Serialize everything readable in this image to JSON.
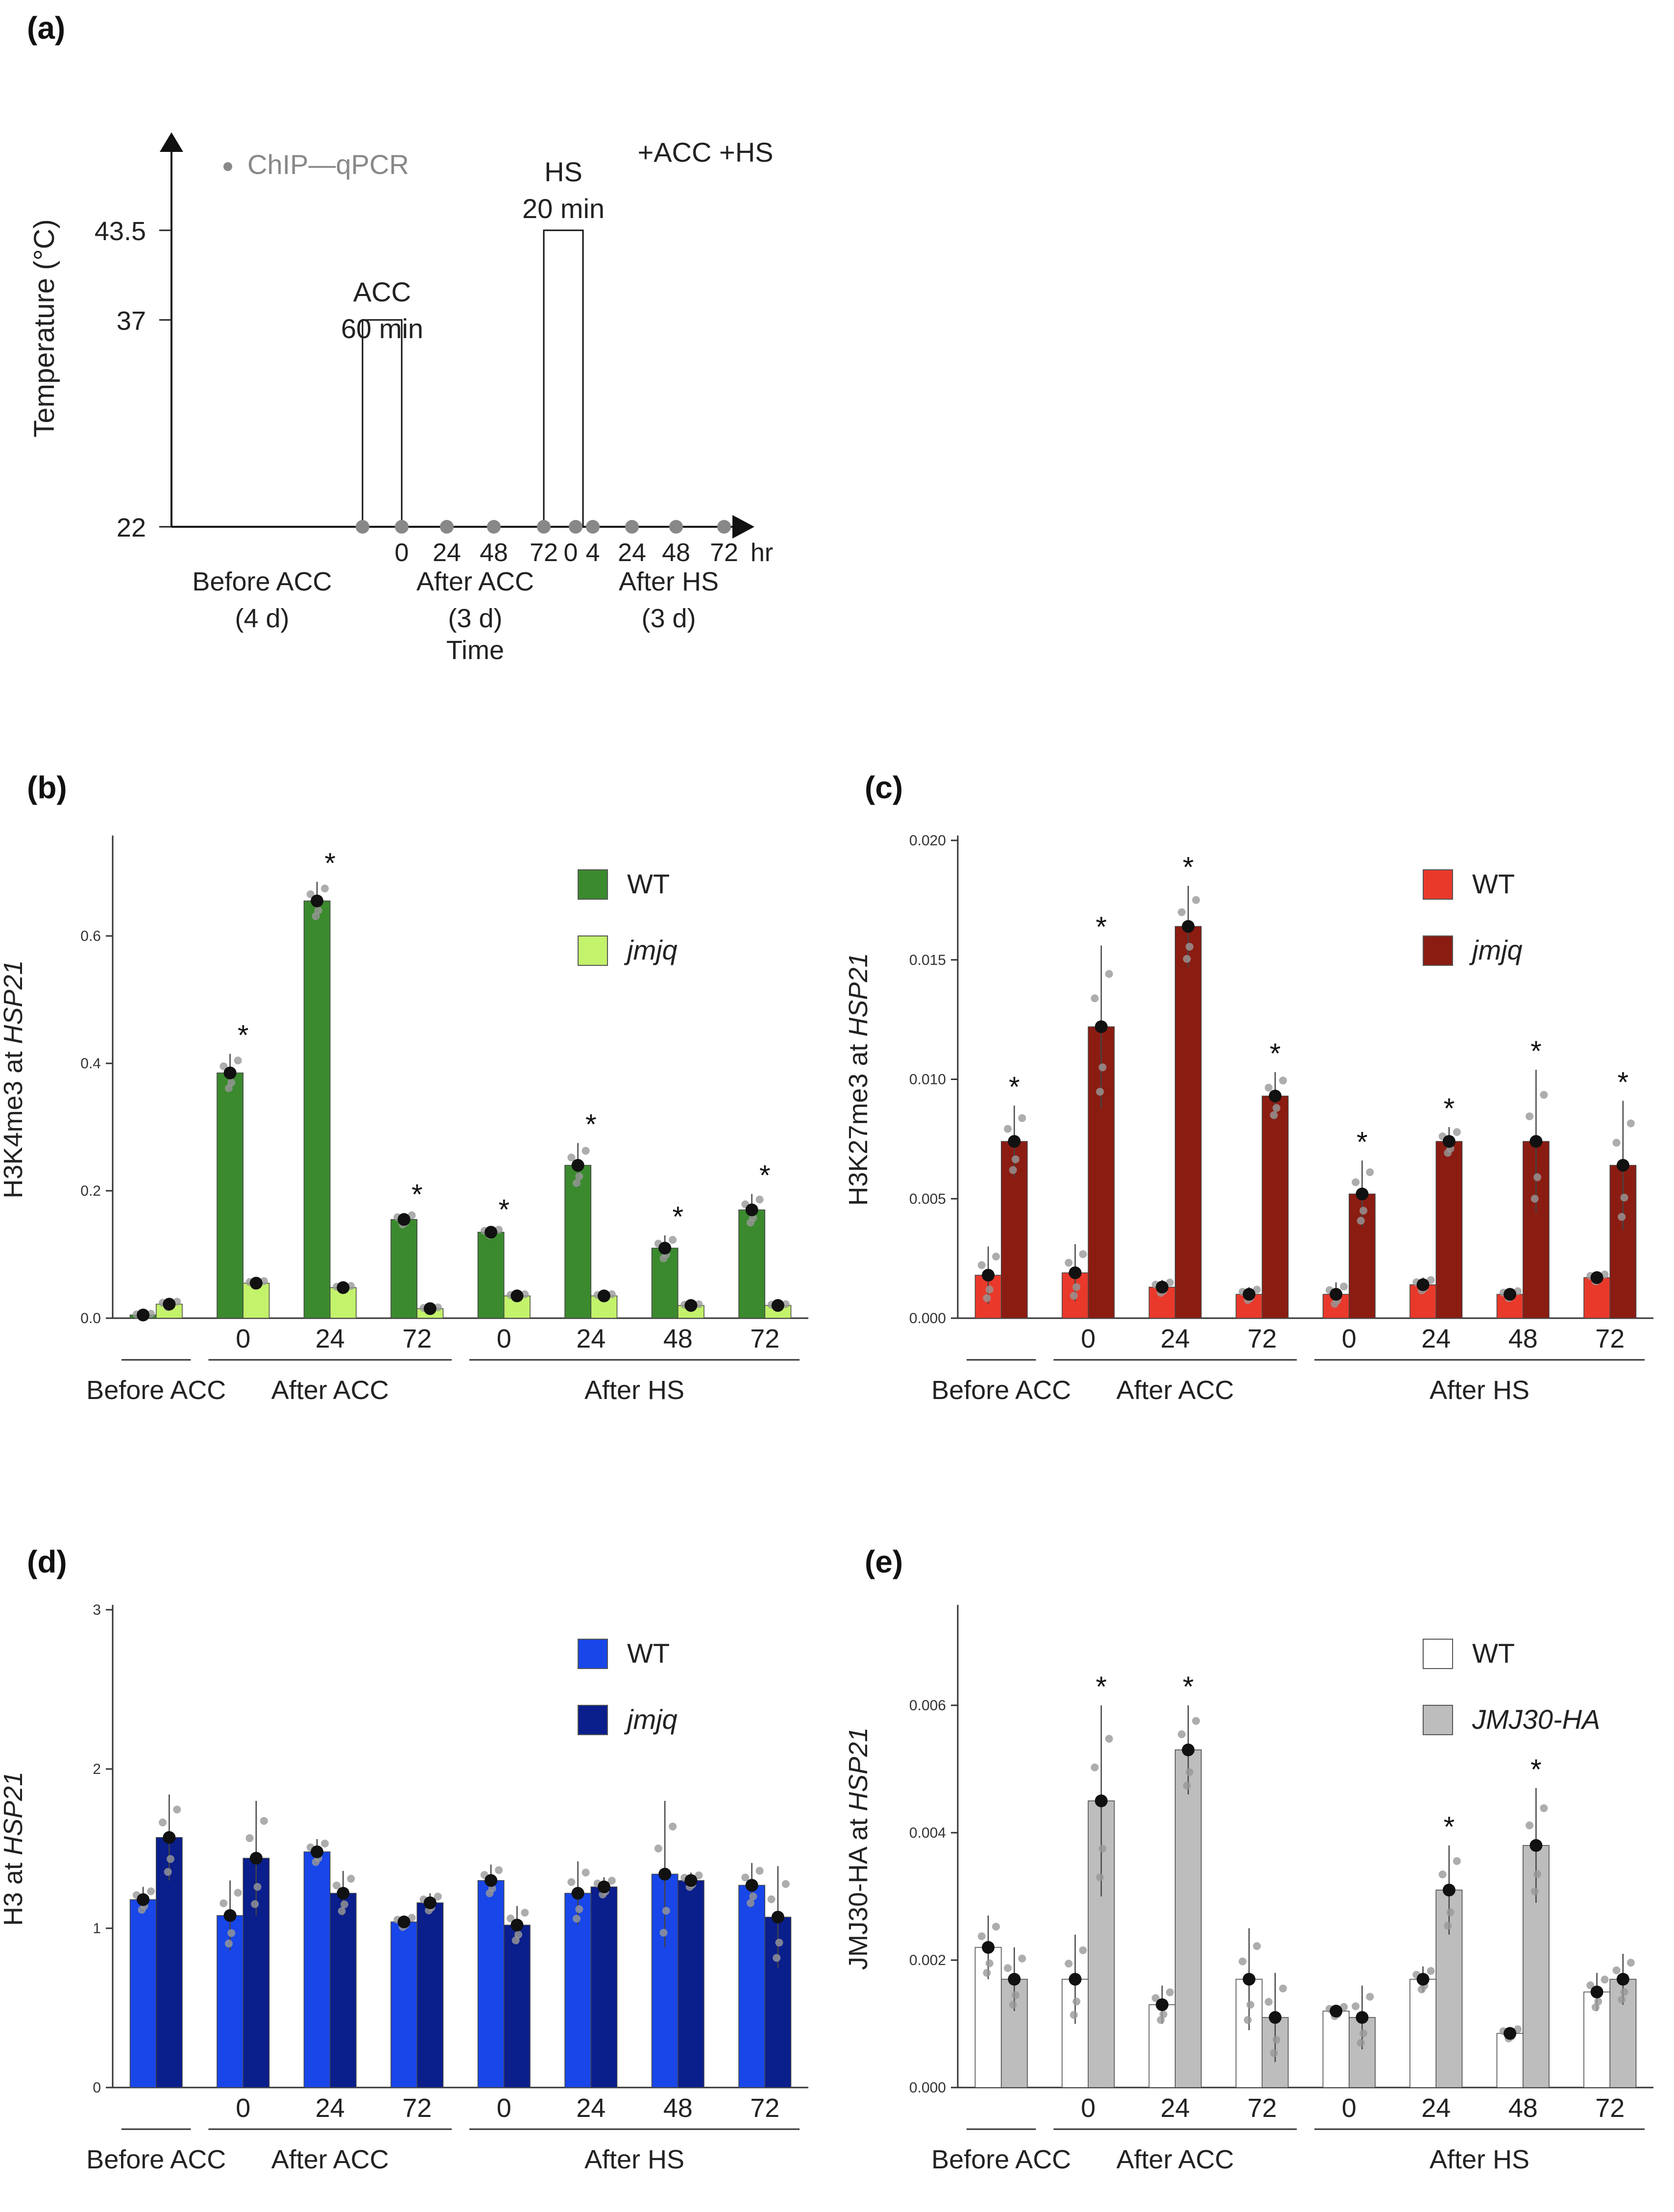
{
  "panel_labels": [
    "(a)",
    "(b)",
    "(c)",
    "(d)",
    "(e)"
  ],
  "panel_a": {
    "ylabel": "Temperature (°C)",
    "xlabel": "Time",
    "yticks": [
      "43.5",
      "37",
      "22"
    ],
    "legend": "ChIP—qPCR",
    "treatment": "+ACC +HS",
    "acc_label": [
      "ACC",
      "60 min"
    ],
    "hs_label": [
      "HS",
      "20 min"
    ],
    "xticks": [
      "0",
      "24",
      "48",
      "72",
      "0",
      "4",
      "24",
      "48",
      "72"
    ],
    "unit": "hr",
    "phases": [
      [
        "Before ACC",
        "(4 d)"
      ],
      [
        "After ACC",
        "(3 d)"
      ],
      [
        "After HS",
        "(3 d)"
      ]
    ]
  },
  "chart_data": [
    {
      "panel": "b",
      "type": "bar",
      "ylabel_prefix": "H3K4me3 at ",
      "ylabel_gene": "HSP21",
      "ylim": [
        0,
        0.75
      ],
      "yticks": [
        "0.0",
        "0.2",
        "0.4",
        "0.6"
      ],
      "categories": [
        "",
        "0",
        "24",
        "72",
        "0",
        "24",
        "48",
        "72"
      ],
      "groups": [
        "Before ACC",
        "After ACC",
        "After HS"
      ],
      "series": [
        {
          "name": "WT",
          "color": "#3b8a2e",
          "values": [
            0.005,
            0.385,
            0.655,
            0.155,
            0.135,
            0.24,
            0.11,
            0.17
          ],
          "err": [
            0.003,
            0.03,
            0.03,
            0.01,
            0.006,
            0.035,
            0.02,
            0.025
          ]
        },
        {
          "name": "jmjq",
          "color": "#c3f26b",
          "values": [
            0.022,
            0.055,
            0.048,
            0.015,
            0.035,
            0.035,
            0.02,
            0.02
          ],
          "err": [
            0.006,
            0.005,
            0.004,
            0.003,
            0.004,
            0.004,
            0.003,
            0.003
          ]
        }
      ],
      "significance": [
        "",
        "*",
        "*",
        "*",
        "*",
        "*",
        "*",
        "*"
      ]
    },
    {
      "panel": "c",
      "type": "bar",
      "ylabel_prefix": "H3K27me3 at ",
      "ylabel_gene": "HSP21",
      "ylim": [
        0,
        0.02
      ],
      "yticks": [
        "0.000",
        "0.005",
        "0.010",
        "0.015",
        "0.020"
      ],
      "categories": [
        "",
        "0",
        "24",
        "72",
        "0",
        "24",
        "48",
        "72"
      ],
      "groups": [
        "Before ACC",
        "After ACC",
        "After HS"
      ],
      "series": [
        {
          "name": "WT",
          "color": "#e8392b",
          "values": [
            0.0018,
            0.0019,
            0.0013,
            0.001,
            0.001,
            0.0014,
            0.001,
            0.0017
          ],
          "err": [
            0.0012,
            0.0012,
            0.0003,
            0.0003,
            0.0005,
            0.0003,
            0.0002,
            0.0002
          ]
        },
        {
          "name": "jmjq",
          "color": "#8b1c12",
          "values": [
            0.0074,
            0.0122,
            0.0164,
            0.0093,
            0.0052,
            0.0074,
            0.0074,
            0.0064
          ],
          "err": [
            0.0015,
            0.0034,
            0.0017,
            0.001,
            0.0014,
            0.0006,
            0.003,
            0.0027
          ]
        }
      ],
      "significance": [
        "*",
        "*",
        "*",
        "*",
        "*",
        "*",
        "*",
        "*"
      ]
    },
    {
      "panel": "d",
      "type": "bar",
      "ylabel_prefix": "H3 at ",
      "ylabel_gene": "HSP21",
      "ylim": [
        0,
        3
      ],
      "yticks": [
        "0",
        "1",
        "2",
        "3"
      ],
      "categories": [
        "",
        "0",
        "24",
        "72",
        "0",
        "24",
        "48",
        "72"
      ],
      "groups": [
        "Before ACC",
        "After ACC",
        "After HS"
      ],
      "series": [
        {
          "name": "WT",
          "color": "#1846e8",
          "values": [
            1.18,
            1.08,
            1.48,
            1.04,
            1.3,
            1.22,
            1.34,
            1.27
          ],
          "err": [
            0.08,
            0.22,
            0.08,
            0.04,
            0.1,
            0.2,
            0.46,
            0.14
          ]
        },
        {
          "name": "jmjq",
          "color": "#0a1e8c",
          "values": [
            1.57,
            1.44,
            1.22,
            1.16,
            1.02,
            1.26,
            1.3,
            1.07
          ],
          "err": [
            0.27,
            0.36,
            0.14,
            0.06,
            0.12,
            0.06,
            0.05,
            0.32
          ]
        }
      ],
      "significance": [
        "",
        "",
        "",
        "",
        "",
        "",
        "",
        ""
      ]
    },
    {
      "panel": "e",
      "type": "bar",
      "ylabel_prefix": "JMJ30-HA at ",
      "ylabel_gene": "HSP21",
      "ylim": [
        0,
        0.0075
      ],
      "yticks": [
        "0.000",
        "0.002",
        "0.004",
        "0.006"
      ],
      "categories": [
        "",
        "0",
        "24",
        "72",
        "0",
        "24",
        "48",
        "72"
      ],
      "groups": [
        "Before ACC",
        "After ACC",
        "After HS"
      ],
      "series": [
        {
          "name": "WT",
          "color": "#ffffff",
          "values": [
            0.0022,
            0.0017,
            0.0013,
            0.0017,
            0.0012,
            0.0017,
            0.00085,
            0.0015
          ],
          "err": [
            0.0005,
            0.0007,
            0.0003,
            0.0008,
            0.0001,
            0.0002,
            0.0001,
            0.0003
          ]
        },
        {
          "name": "JMJ30-HA",
          "color": "#bdbdbd",
          "values": [
            0.0017,
            0.0045,
            0.0053,
            0.0011,
            0.0011,
            0.0031,
            0.0038,
            0.0017
          ],
          "err": [
            0.0005,
            0.0015,
            0.0007,
            0.0007,
            0.0005,
            0.0007,
            0.0009,
            0.0004
          ]
        }
      ],
      "significance": [
        "",
        "*",
        "*",
        "",
        "",
        "*",
        "*",
        ""
      ]
    }
  ]
}
